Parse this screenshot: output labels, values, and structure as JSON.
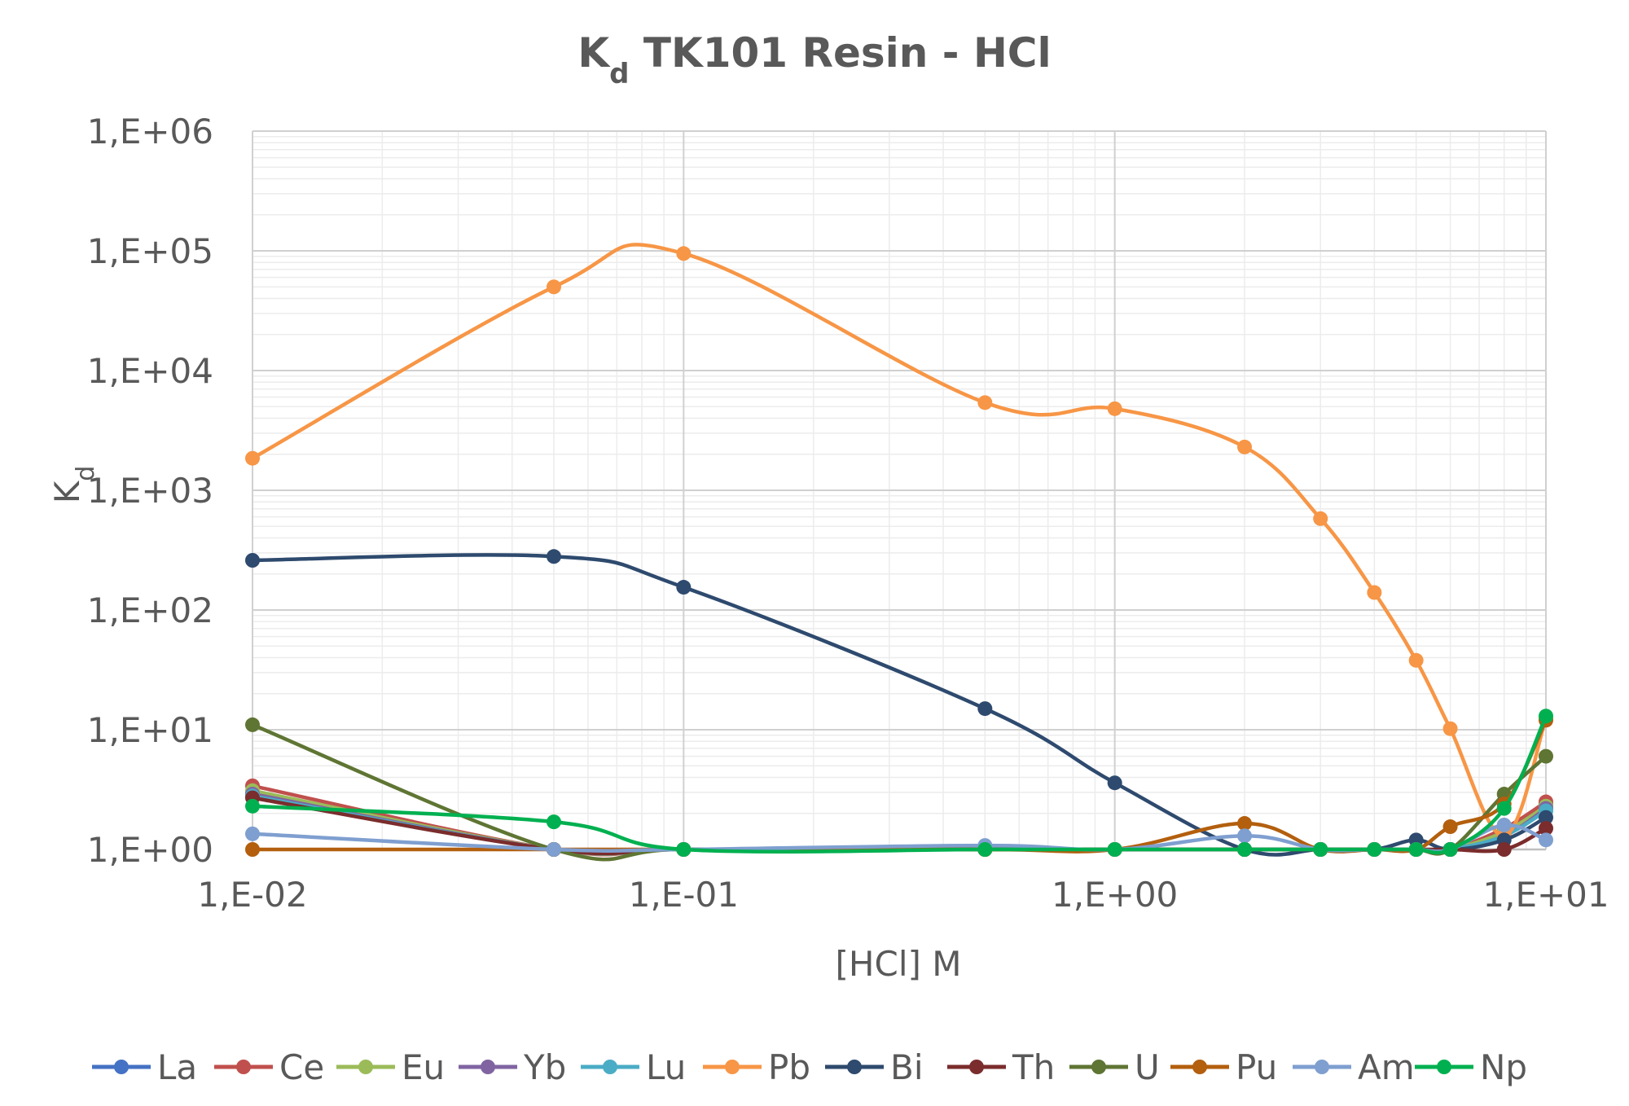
{
  "chart_data": {
    "type": "line",
    "title": "K",
    "title_sub": "d",
    "title_rest": " TK101 Resin - HCl",
    "xlabel": "[HCl] M",
    "ylabel": "K",
    "ylabel_sub": "d",
    "x_scale": "log",
    "y_scale": "log",
    "xlim": [
      0.01,
      10
    ],
    "ylim": [
      1,
      1000000
    ],
    "x_tick_values": [
      0.01,
      0.1,
      1,
      10
    ],
    "x_tick_labels": [
      "1,E-02",
      "1,E-01",
      "1,E+00",
      "1,E+01"
    ],
    "y_tick_values": [
      1,
      10,
      100,
      1000,
      10000,
      100000,
      1000000
    ],
    "y_tick_labels": [
      "1,E+00",
      "1,E+01",
      "1,E+02",
      "1,E+03",
      "1,E+04",
      "1,E+05",
      "1,E+06"
    ],
    "grid": true,
    "legend_position": "bottom",
    "series": [
      {
        "name": "La",
        "color": "#4472c4",
        "points": [
          [
            0.01,
            3.0
          ],
          [
            0.05,
            1
          ],
          [
            0.1,
            1
          ],
          [
            0.5,
            1
          ],
          [
            1,
            1
          ],
          [
            2,
            1
          ],
          [
            3,
            1
          ],
          [
            4,
            1
          ],
          [
            5,
            1
          ],
          [
            6,
            1
          ],
          [
            8,
            1.4
          ],
          [
            10,
            2.4
          ]
        ]
      },
      {
        "name": "Ce",
        "color": "#c0504d",
        "points": [
          [
            0.01,
            3.4
          ],
          [
            0.05,
            1
          ],
          [
            0.1,
            1
          ],
          [
            0.5,
            1
          ],
          [
            1,
            1
          ],
          [
            2,
            1
          ],
          [
            3,
            1
          ],
          [
            4,
            1
          ],
          [
            5,
            1
          ],
          [
            6,
            1
          ],
          [
            8,
            1.5
          ],
          [
            10,
            2.5
          ]
        ]
      },
      {
        "name": "Eu",
        "color": "#9bbb59",
        "points": [
          [
            0.01,
            3.1
          ],
          [
            0.05,
            1
          ],
          [
            0.1,
            1
          ],
          [
            0.5,
            1
          ],
          [
            1,
            1
          ],
          [
            2,
            1
          ],
          [
            3,
            1
          ],
          [
            4,
            1
          ],
          [
            5,
            1
          ],
          [
            6,
            1
          ],
          [
            8,
            1.4
          ],
          [
            10,
            2.3
          ]
        ]
      },
      {
        "name": "Yb",
        "color": "#8064a2",
        "points": [
          [
            0.01,
            2.9
          ],
          [
            0.05,
            1
          ],
          [
            0.1,
            1
          ],
          [
            0.5,
            1
          ],
          [
            1,
            1
          ],
          [
            2,
            1
          ],
          [
            3,
            1
          ],
          [
            4,
            1
          ],
          [
            5,
            1
          ],
          [
            6,
            1
          ],
          [
            8,
            1.3
          ],
          [
            10,
            2.2
          ]
        ]
      },
      {
        "name": "Lu",
        "color": "#4bacc6",
        "points": [
          [
            0.01,
            2.8
          ],
          [
            0.05,
            1
          ],
          [
            0.1,
            1
          ],
          [
            0.5,
            1
          ],
          [
            1,
            1
          ],
          [
            2,
            1
          ],
          [
            3,
            1
          ],
          [
            4,
            1
          ],
          [
            5,
            1
          ],
          [
            6,
            1
          ],
          [
            8,
            1.3
          ],
          [
            10,
            2.1
          ]
        ]
      },
      {
        "name": "Pb",
        "color": "#f79646",
        "points": [
          [
            0.01,
            1850
          ],
          [
            0.05,
            50000
          ],
          [
            0.1,
            95000
          ],
          [
            0.5,
            5400
          ],
          [
            1,
            4800
          ],
          [
            2,
            2300
          ],
          [
            3,
            580
          ],
          [
            4,
            140
          ],
          [
            5,
            38
          ],
          [
            6,
            10.2
          ],
          [
            8,
            1.3
          ],
          [
            10,
            12.5
          ]
        ]
      },
      {
        "name": "Bi",
        "color": "#2e4a6e",
        "points": [
          [
            0.01,
            260
          ],
          [
            0.05,
            280
          ],
          [
            0.1,
            155
          ],
          [
            0.5,
            15
          ],
          [
            1,
            3.6
          ],
          [
            2,
            1
          ],
          [
            3,
            1
          ],
          [
            4,
            1
          ],
          [
            5,
            1.2
          ],
          [
            6,
            1
          ],
          [
            8,
            1.2
          ],
          [
            10,
            1.85
          ]
        ]
      },
      {
        "name": "Th",
        "color": "#7b2c2c",
        "points": [
          [
            0.01,
            2.7
          ],
          [
            0.05,
            1
          ],
          [
            0.1,
            1
          ],
          [
            0.5,
            1
          ],
          [
            1,
            1
          ],
          [
            2,
            1
          ],
          [
            3,
            1
          ],
          [
            4,
            1
          ],
          [
            5,
            1
          ],
          [
            6,
            1
          ],
          [
            8,
            1
          ],
          [
            10,
            1.5
          ]
        ]
      },
      {
        "name": "U",
        "color": "#5f7533",
        "points": [
          [
            0.01,
            11
          ],
          [
            0.05,
            1
          ],
          [
            0.1,
            1
          ],
          [
            0.5,
            1
          ],
          [
            1,
            1
          ],
          [
            2,
            1
          ],
          [
            3,
            1
          ],
          [
            4,
            1
          ],
          [
            5,
            1
          ],
          [
            6,
            1
          ],
          [
            8,
            2.9
          ],
          [
            10,
            6
          ]
        ]
      },
      {
        "name": "Pu",
        "color": "#b35f0e",
        "points": [
          [
            0.01,
            1
          ],
          [
            0.05,
            1
          ],
          [
            0.1,
            1
          ],
          [
            0.5,
            1
          ],
          [
            1,
            1
          ],
          [
            2,
            1.65
          ],
          [
            3,
            1
          ],
          [
            4,
            1
          ],
          [
            5,
            1
          ],
          [
            6,
            1.55
          ],
          [
            8,
            2.4
          ],
          [
            10,
            12
          ]
        ]
      },
      {
        "name": "Am",
        "color": "#7f9fd0",
        "points": [
          [
            0.01,
            1.35
          ],
          [
            0.05,
            1
          ],
          [
            0.1,
            1
          ],
          [
            0.5,
            1.08
          ],
          [
            1,
            1
          ],
          [
            2,
            1.3
          ],
          [
            3,
            1
          ],
          [
            4,
            1
          ],
          [
            5,
            1
          ],
          [
            6,
            1
          ],
          [
            8,
            1.6
          ],
          [
            10,
            1.2
          ]
        ]
      },
      {
        "name": "Np",
        "color": "#00b050",
        "points": [
          [
            0.01,
            2.3
          ],
          [
            0.05,
            1.7
          ],
          [
            0.1,
            1
          ],
          [
            0.5,
            1
          ],
          [
            1,
            1
          ],
          [
            2,
            1
          ],
          [
            3,
            1
          ],
          [
            4,
            1
          ],
          [
            5,
            1
          ],
          [
            6,
            1
          ],
          [
            8,
            2.2
          ],
          [
            10,
            13
          ]
        ]
      }
    ]
  }
}
